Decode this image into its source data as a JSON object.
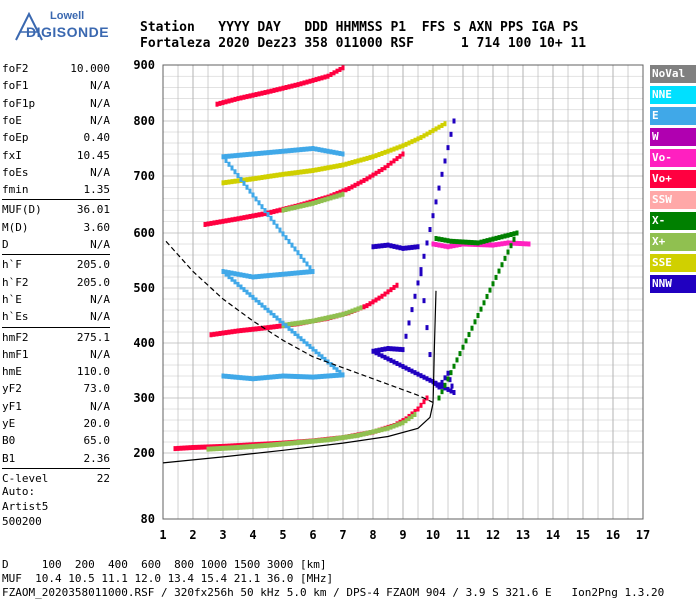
{
  "logo": {
    "line1": "Lowell",
    "line2": "DIGISONDE"
  },
  "header": {
    "line1": "Station   YYYY DAY   DDD HHMMSS P1  FFS S AXN PPS IGA PS",
    "line2": "Fortaleza 2020 Dez23 358 011000 RSF      1 714 100 10+ 11"
  },
  "params": [
    {
      "label": "foF2",
      "value": "10.000"
    },
    {
      "label": "foF1",
      "value": "N/A"
    },
    {
      "label": "foF1p",
      "value": "N/A"
    },
    {
      "label": "foE",
      "value": "N/A"
    },
    {
      "label": "foEp",
      "value": "0.40"
    },
    {
      "label": "fxI",
      "value": "10.45"
    },
    {
      "label": "foEs",
      "value": "N/A"
    },
    {
      "label": "fmin",
      "value": "1.35"
    },
    {
      "label": "MUF(D)",
      "value": "36.01"
    },
    {
      "label": "M(D)",
      "value": "3.60"
    },
    {
      "label": "D",
      "value": "N/A"
    },
    {
      "label": "h`F",
      "value": "205.0"
    },
    {
      "label": "h`F2",
      "value": "205.0"
    },
    {
      "label": "h`E",
      "value": "N/A"
    },
    {
      "label": "h`Es",
      "value": "N/A"
    },
    {
      "label": "hmF2",
      "value": "275.1"
    },
    {
      "label": "hmF1",
      "value": "N/A"
    },
    {
      "label": "hmE",
      "value": "110.0"
    },
    {
      "label": "yF2",
      "value": "73.0"
    },
    {
      "label": "yF1",
      "value": "N/A"
    },
    {
      "label": "yE",
      "value": "20.0"
    },
    {
      "label": "B0",
      "value": "65.0"
    },
    {
      "label": "B1",
      "value": "2.36"
    },
    {
      "label": "C-level",
      "value": "22"
    }
  ],
  "auto": {
    "line1": "Auto:",
    "line2": "Artist5",
    "line3": "500200"
  },
  "legend": [
    {
      "label": "NoVal",
      "color": "#808080"
    },
    {
      "label": "NNE",
      "color": "#00e0ff"
    },
    {
      "label": "E",
      "color": "#40a8e8"
    },
    {
      "label": "W",
      "color": "#b000b0"
    },
    {
      "label": "Vo-",
      "color": "#ff20c0"
    },
    {
      "label": "Vo+",
      "color": "#ff0040"
    },
    {
      "label": "SSW",
      "color": "#ffa8a8"
    },
    {
      "label": "X-",
      "color": "#008000"
    },
    {
      "label": "X+",
      "color": "#90c050"
    },
    {
      "label": "SSE",
      "color": "#d0d000"
    },
    {
      "label": "NNW",
      "color": "#2000c0"
    }
  ],
  "footer": {
    "line1": "D     100  200  400  600  800 1000 1500 3000 [km]",
    "line2": "MUF  10.4 10.5 11.1 12.0 13.4 15.4 21.1 36.0 [MHz]",
    "line3": "FZAOM_2020358011000.RSF / 320fx256h 50 kHz 5.0 km / DPS-4 FZAOM 904 / 3.9 S 321.6 E   Ion2Png 1.3.20"
  },
  "chart_data": {
    "type": "scatter",
    "xlim": [
      1,
      17
    ],
    "ylim": [
      80,
      900
    ],
    "x_ticks": [
      1,
      2,
      3,
      4,
      5,
      6,
      7,
      8,
      9,
      10,
      11,
      12,
      13,
      14,
      15,
      16,
      17
    ],
    "y_ticks": [
      80,
      200,
      300,
      400,
      500,
      600,
      700,
      800,
      900
    ],
    "grid": true,
    "traces": [
      {
        "name": "Vo+",
        "color": "#ff0040",
        "points": [
          [
            1.4,
            208
          ],
          [
            2,
            210
          ],
          [
            3,
            212
          ],
          [
            4,
            215
          ],
          [
            5,
            218
          ],
          [
            6,
            222
          ],
          [
            7,
            228
          ],
          [
            8,
            238
          ],
          [
            8.7,
            250
          ],
          [
            9.1,
            262
          ],
          [
            9.5,
            280
          ],
          [
            9.8,
            300
          ]
        ]
      },
      {
        "name": "X+",
        "color": "#90c050",
        "points": [
          [
            2.5,
            207
          ],
          [
            3.5,
            210
          ],
          [
            4.5,
            214
          ],
          [
            5.5,
            219
          ],
          [
            6.5,
            224
          ],
          [
            7.5,
            232
          ],
          [
            8.5,
            245
          ],
          [
            9,
            255
          ],
          [
            9.4,
            270
          ]
        ]
      },
      {
        "name": "Vo+",
        "color": "#ff0040",
        "points": [
          [
            2.6,
            415
          ],
          [
            3.5,
            422
          ],
          [
            4.5,
            428
          ],
          [
            5.5,
            435
          ],
          [
            6.5,
            445
          ],
          [
            7.2,
            455
          ],
          [
            7.8,
            468
          ],
          [
            8.3,
            485
          ],
          [
            8.8,
            505
          ]
        ]
      },
      {
        "name": "X+",
        "color": "#90c050",
        "points": [
          [
            5,
            432
          ],
          [
            6,
            440
          ],
          [
            7,
            452
          ],
          [
            7.6,
            464
          ]
        ]
      },
      {
        "name": "Vo+",
        "color": "#ff0040",
        "points": [
          [
            2.4,
            615
          ],
          [
            3.5,
            625
          ],
          [
            4.5,
            635
          ],
          [
            5.5,
            648
          ],
          [
            6.5,
            663
          ],
          [
            7.2,
            678
          ],
          [
            7.8,
            695
          ],
          [
            8.4,
            715
          ],
          [
            9,
            740
          ]
        ]
      },
      {
        "name": "X+",
        "color": "#90c050",
        "points": [
          [
            5,
            640
          ],
          [
            6,
            652
          ],
          [
            7,
            668
          ]
        ]
      },
      {
        "name": "Vo+",
        "color": "#ff0040",
        "points": [
          [
            2.8,
            830
          ],
          [
            3.5,
            840
          ],
          [
            4.5,
            852
          ],
          [
            5.5,
            865
          ],
          [
            6.5,
            880
          ],
          [
            7,
            895
          ]
        ]
      },
      {
        "name": "SSE",
        "color": "#d0d000",
        "points": [
          [
            3,
            688
          ],
          [
            4,
            695
          ],
          [
            5,
            703
          ],
          [
            6,
            710
          ],
          [
            7,
            720
          ],
          [
            8,
            735
          ],
          [
            9,
            755
          ],
          [
            9.6,
            770
          ],
          [
            10.4,
            795
          ]
        ]
      },
      {
        "name": "NNW",
        "color": "#2000c0",
        "points": [
          [
            8,
            575
          ],
          [
            8.5,
            578
          ],
          [
            9,
            572
          ],
          [
            9.5,
            575
          ],
          [
            10,
            330
          ],
          [
            10.2,
            320
          ],
          [
            10.5,
            345
          ],
          [
            10.7,
            310
          ],
          [
            8,
            385
          ],
          [
            8.5,
            390
          ],
          [
            9,
            388
          ],
          [
            10.7,
            800
          ]
        ]
      },
      {
        "name": "Vo-",
        "color": "#ff20c0",
        "points": [
          [
            10,
            580
          ],
          [
            10.5,
            575
          ],
          [
            11,
            580
          ],
          [
            12,
            578
          ],
          [
            12.5,
            582
          ],
          [
            13.2,
            580
          ]
        ]
      },
      {
        "name": "X-",
        "color": "#008000",
        "points": [
          [
            10.1,
            590
          ],
          [
            10.6,
            585
          ],
          [
            11.5,
            582
          ],
          [
            12.8,
            600
          ],
          [
            10.2,
            300
          ]
        ]
      },
      {
        "name": "E",
        "color": "#40a8e8",
        "points": [
          [
            3,
            340
          ],
          [
            4,
            335
          ],
          [
            5,
            340
          ],
          [
            6,
            338
          ],
          [
            7,
            342
          ],
          [
            3,
            530
          ],
          [
            4,
            520
          ],
          [
            5,
            525
          ],
          [
            6,
            530
          ],
          [
            3,
            735
          ],
          [
            4,
            740
          ],
          [
            5,
            745
          ],
          [
            6,
            750
          ],
          [
            7,
            740
          ]
        ]
      }
    ],
    "curves": [
      {
        "name": "profile",
        "style": "solid",
        "points": [
          [
            1,
            182
          ],
          [
            3,
            193
          ],
          [
            5,
            205
          ],
          [
            7,
            218
          ],
          [
            8.5,
            230
          ],
          [
            9.5,
            245
          ],
          [
            9.9,
            265
          ],
          [
            10.0,
            290
          ],
          [
            10.02,
            330
          ],
          [
            10.05,
            400
          ],
          [
            10.1,
            495
          ]
        ]
      },
      {
        "name": "muf",
        "style": "dashed",
        "points": [
          [
            1.1,
            585
          ],
          [
            2,
            530
          ],
          [
            3,
            480
          ],
          [
            4,
            440
          ],
          [
            5,
            405
          ],
          [
            6,
            375
          ],
          [
            7,
            355
          ],
          [
            8,
            335
          ],
          [
            9,
            315
          ],
          [
            9.5,
            305
          ],
          [
            10,
            292
          ]
        ]
      }
    ]
  }
}
